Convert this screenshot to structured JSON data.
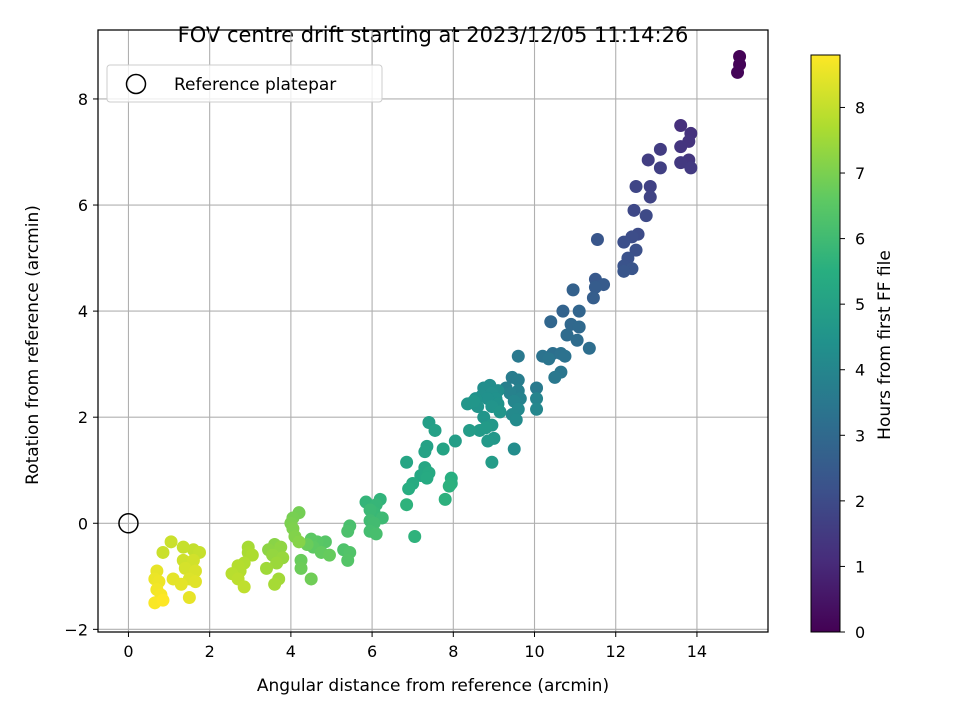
{
  "chart_data": {
    "type": "scatter",
    "title": "FOV centre drift starting at 2023/12/05 11:14:26",
    "xlabel": "Angular distance from reference (arcmin)",
    "ylabel": "Rotation from reference (arcmin)",
    "xlim": [
      -0.75,
      15.75
    ],
    "ylim": [
      -2.05,
      9.3
    ],
    "xticks": [
      0,
      2,
      4,
      6,
      8,
      10,
      12,
      14
    ],
    "yticks": [
      -2,
      0,
      2,
      4,
      6,
      8
    ],
    "grid": true,
    "legend": {
      "position": "top-left",
      "entries": [
        "Reference platepar"
      ]
    },
    "reference_point": {
      "x": 0,
      "y": 0,
      "label": "Reference platepar"
    },
    "colorbar": {
      "label": "Hours from first FF file",
      "colormap": "viridis",
      "range": [
        0,
        8.8
      ],
      "ticks": [
        0,
        1,
        2,
        3,
        4,
        5,
        6,
        7,
        8
      ]
    },
    "series": [
      {
        "color_by": "hours",
        "points": [
          [
            15.05,
            8.8,
            0.05
          ],
          [
            15.05,
            8.65,
            0.08
          ],
          [
            15.0,
            8.5,
            0.1
          ],
          [
            13.6,
            7.5,
            1.2
          ],
          [
            13.85,
            7.35,
            1.25
          ],
          [
            13.8,
            7.2,
            1.3
          ],
          [
            13.6,
            7.1,
            1.35
          ],
          [
            13.8,
            6.85,
            1.4
          ],
          [
            13.6,
            6.8,
            1.45
          ],
          [
            13.85,
            6.7,
            1.5
          ],
          [
            13.1,
            7.05,
            1.55
          ],
          [
            12.8,
            6.85,
            1.6
          ],
          [
            13.1,
            6.7,
            1.65
          ],
          [
            12.85,
            6.35,
            1.7
          ],
          [
            12.85,
            6.15,
            1.75
          ],
          [
            12.5,
            6.35,
            1.85
          ],
          [
            12.45,
            5.9,
            1.9
          ],
          [
            12.75,
            5.8,
            1.95
          ],
          [
            12.55,
            5.45,
            2.0
          ],
          [
            12.4,
            5.4,
            2.05
          ],
          [
            12.2,
            5.3,
            2.1
          ],
          [
            12.5,
            5.15,
            2.15
          ],
          [
            12.3,
            5.0,
            2.2
          ],
          [
            12.2,
            4.85,
            2.25
          ],
          [
            12.4,
            4.8,
            2.3
          ],
          [
            12.2,
            4.75,
            2.35
          ],
          [
            11.55,
            5.35,
            2.35
          ],
          [
            11.5,
            4.6,
            2.45
          ],
          [
            11.7,
            4.5,
            2.5
          ],
          [
            11.5,
            4.45,
            2.55
          ],
          [
            11.45,
            4.25,
            2.6
          ],
          [
            10.95,
            4.4,
            2.7
          ],
          [
            10.7,
            4.0,
            2.8
          ],
          [
            11.1,
            4.0,
            2.85
          ],
          [
            10.4,
            3.8,
            2.9
          ],
          [
            10.9,
            3.75,
            2.95
          ],
          [
            11.1,
            3.7,
            3.0
          ],
          [
            10.8,
            3.55,
            3.05
          ],
          [
            11.05,
            3.45,
            3.1
          ],
          [
            11.35,
            3.3,
            3.15
          ],
          [
            10.45,
            3.2,
            3.2
          ],
          [
            10.65,
            3.2,
            3.25
          ],
          [
            10.75,
            3.15,
            3.3
          ],
          [
            10.2,
            3.15,
            3.35
          ],
          [
            10.35,
            3.1,
            3.4
          ],
          [
            10.65,
            2.85,
            3.45
          ],
          [
            10.5,
            2.75,
            3.5
          ],
          [
            9.6,
            3.15,
            3.55
          ],
          [
            10.05,
            2.55,
            3.6
          ],
          [
            9.45,
            2.75,
            3.65
          ],
          [
            9.6,
            2.7,
            3.7
          ],
          [
            9.3,
            2.55,
            3.75
          ],
          [
            9.6,
            2.5,
            3.8
          ],
          [
            9.4,
            2.45,
            3.85
          ],
          [
            9.65,
            2.35,
            3.9
          ],
          [
            10.05,
            2.35,
            3.95
          ],
          [
            9.5,
            2.3,
            4.0
          ],
          [
            10.05,
            2.15,
            4.05
          ],
          [
            9.6,
            2.15,
            4.1
          ],
          [
            9.45,
            2.05,
            4.15
          ],
          [
            9.55,
            1.95,
            4.2
          ],
          [
            9.5,
            1.4,
            4.25
          ],
          [
            8.9,
            2.6,
            4.25
          ],
          [
            9.1,
            2.5,
            4.3
          ],
          [
            8.75,
            2.55,
            4.3
          ],
          [
            8.95,
            2.45,
            4.35
          ],
          [
            8.7,
            2.4,
            4.35
          ],
          [
            9.05,
            2.35,
            4.4
          ],
          [
            8.85,
            2.35,
            4.4
          ],
          [
            8.55,
            2.35,
            4.45
          ],
          [
            9.1,
            2.25,
            4.45
          ],
          [
            8.6,
            2.2,
            4.5
          ],
          [
            8.95,
            2.2,
            4.5
          ],
          [
            9.15,
            2.1,
            4.55
          ],
          [
            8.75,
            2.0,
            4.55
          ],
          [
            8.35,
            2.25,
            4.6
          ],
          [
            8.5,
            2.3,
            4.6
          ],
          [
            8.95,
            1.85,
            4.65
          ],
          [
            9.0,
            1.6,
            4.65
          ],
          [
            8.85,
            1.55,
            4.7
          ],
          [
            8.65,
            1.75,
            4.75
          ],
          [
            8.8,
            1.8,
            4.75
          ],
          [
            8.95,
            1.15,
            4.8
          ],
          [
            8.4,
            1.75,
            4.8
          ],
          [
            8.05,
            1.55,
            4.85
          ],
          [
            7.4,
            1.9,
            4.9
          ],
          [
            7.55,
            1.75,
            4.95
          ],
          [
            7.35,
            1.45,
            5.0
          ],
          [
            7.3,
            1.35,
            5.05
          ],
          [
            7.75,
            1.4,
            5.1
          ],
          [
            6.85,
            1.15,
            5.15
          ],
          [
            7.3,
            1.05,
            5.2
          ],
          [
            7.2,
            0.9,
            5.25
          ],
          [
            7.4,
            0.95,
            5.3
          ],
          [
            7.35,
            0.85,
            5.35
          ],
          [
            7.0,
            0.75,
            5.4
          ],
          [
            6.9,
            0.65,
            5.45
          ],
          [
            7.95,
            0.85,
            5.5
          ],
          [
            7.95,
            0.75,
            5.55
          ],
          [
            7.9,
            0.7,
            5.6
          ],
          [
            7.8,
            0.45,
            5.6
          ],
          [
            6.85,
            0.35,
            5.65
          ],
          [
            7.05,
            -0.25,
            5.65
          ],
          [
            6.2,
            0.45,
            5.7
          ],
          [
            5.85,
            0.4,
            5.75
          ],
          [
            6.1,
            0.35,
            5.8
          ],
          [
            6.05,
            0.2,
            5.85
          ],
          [
            5.95,
            0.25,
            5.9
          ],
          [
            6.25,
            0.1,
            5.95
          ],
          [
            5.95,
            0.05,
            6.0
          ],
          [
            6.05,
            0.0,
            6.05
          ],
          [
            5.95,
            -0.15,
            6.1
          ],
          [
            6.1,
            -0.2,
            6.15
          ],
          [
            5.45,
            -0.05,
            6.2
          ],
          [
            5.4,
            -0.15,
            6.25
          ],
          [
            5.3,
            -0.5,
            6.3
          ],
          [
            5.45,
            -0.55,
            6.35
          ],
          [
            5.4,
            -0.7,
            6.4
          ],
          [
            4.85,
            -0.35,
            6.45
          ],
          [
            4.65,
            -0.35,
            6.5
          ],
          [
            4.5,
            -0.3,
            6.55
          ],
          [
            4.55,
            -0.45,
            6.6
          ],
          [
            4.75,
            -0.55,
            6.65
          ],
          [
            4.95,
            -0.6,
            6.7
          ],
          [
            4.4,
            -0.4,
            6.75
          ],
          [
            4.25,
            -0.7,
            6.75
          ],
          [
            4.25,
            -0.85,
            6.8
          ],
          [
            4.5,
            -1.05,
            6.85
          ],
          [
            4.2,
            0.2,
            6.9
          ],
          [
            4.05,
            0.1,
            6.95
          ],
          [
            4.0,
            0.0,
            7.0
          ],
          [
            4.05,
            -0.1,
            7.05
          ],
          [
            4.1,
            -0.25,
            7.1
          ],
          [
            4.2,
            -0.35,
            7.15
          ],
          [
            3.6,
            -0.4,
            7.2
          ],
          [
            3.45,
            -0.5,
            7.25
          ],
          [
            3.75,
            -0.45,
            7.3
          ],
          [
            3.55,
            -0.6,
            7.35
          ],
          [
            3.8,
            -0.65,
            7.4
          ],
          [
            3.65,
            -0.75,
            7.45
          ],
          [
            3.4,
            -0.85,
            7.5
          ],
          [
            3.7,
            -1.05,
            7.55
          ],
          [
            3.6,
            -1.15,
            7.6
          ],
          [
            2.95,
            -0.45,
            7.6
          ],
          [
            2.95,
            -0.55,
            7.65
          ],
          [
            3.05,
            -0.6,
            7.7
          ],
          [
            2.85,
            -0.75,
            7.75
          ],
          [
            2.7,
            -0.8,
            7.8
          ],
          [
            2.75,
            -0.9,
            7.8
          ],
          [
            2.55,
            -0.95,
            7.85
          ],
          [
            2.7,
            -1.05,
            7.9
          ],
          [
            2.85,
            -1.2,
            7.95
          ],
          [
            1.6,
            -0.5,
            8.0
          ],
          [
            1.75,
            -0.55,
            8.05
          ],
          [
            1.35,
            -0.45,
            8.05
          ],
          [
            1.05,
            -0.35,
            8.1
          ],
          [
            0.85,
            -0.55,
            8.1
          ],
          [
            1.35,
            -0.7,
            8.15
          ],
          [
            1.6,
            -0.7,
            8.2
          ],
          [
            1.4,
            -0.85,
            8.25
          ],
          [
            1.65,
            -0.9,
            8.3
          ],
          [
            1.5,
            -1.05,
            8.35
          ],
          [
            1.65,
            -1.1,
            8.4
          ],
          [
            1.1,
            -1.05,
            8.45
          ],
          [
            1.3,
            -1.15,
            8.45
          ],
          [
            1.5,
            -1.4,
            8.5
          ],
          [
            0.7,
            -0.9,
            8.5
          ],
          [
            0.65,
            -1.05,
            8.55
          ],
          [
            0.75,
            -1.1,
            8.6
          ],
          [
            0.7,
            -1.25,
            8.65
          ],
          [
            0.8,
            -1.35,
            8.7
          ],
          [
            0.65,
            -1.5,
            8.75
          ],
          [
            0.85,
            -1.45,
            8.8
          ]
        ]
      }
    ]
  }
}
